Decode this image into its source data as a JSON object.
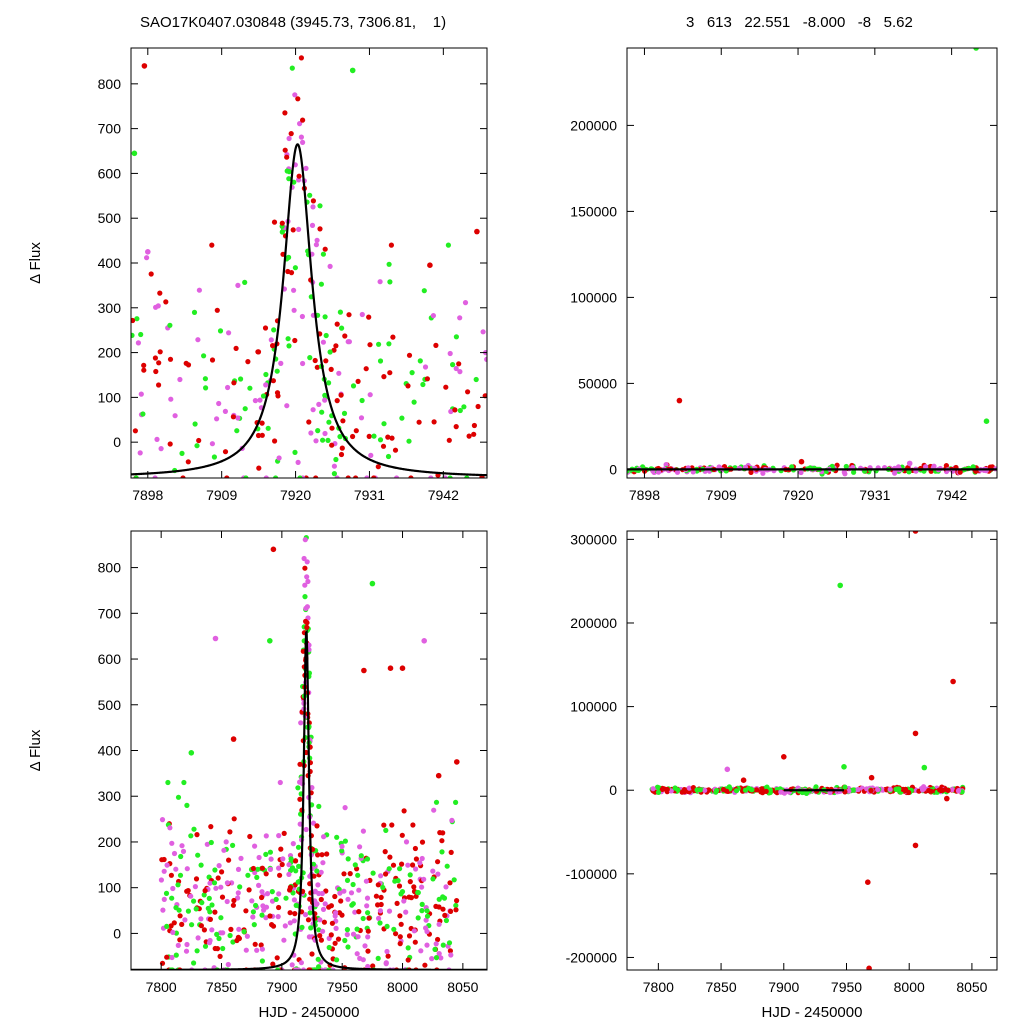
{
  "header": {
    "left": "SAO17K0407.030848 (3945.73, 7306.81,    1)",
    "right": "3   613   22.551   -8.000   -8   5.62"
  },
  "colors": {
    "red": "#dd0000",
    "green": "#22ee22",
    "magenta": "#e060e0",
    "fit": "#000000"
  },
  "chart_data": [
    {
      "id": "top-left",
      "type": "scatter",
      "xlim": [
        7895.5,
        7948.5
      ],
      "ylim": [
        -80,
        880
      ],
      "xticks": [
        7898,
        7909,
        7920,
        7931,
        7942
      ],
      "yticks": [
        0,
        100,
        200,
        300,
        400,
        500,
        600,
        700,
        800
      ],
      "xlabel": "",
      "ylabel": "Δ Flux",
      "fit": {
        "shape": "lorentzian",
        "center": 7920.3,
        "amplitude": 745,
        "hwhm": 2.6,
        "offset": -80
      },
      "cloud": [
        {
          "kind": "peak",
          "n": 130,
          "center": 7920.3,
          "width": 3.2,
          "amp": 745,
          "offset": -80,
          "scatter": 130,
          "xmin": 7895.5,
          "xmax": 7948.5,
          "ymin": -80,
          "ymax": 870
        },
        {
          "kind": "band",
          "n": 210,
          "xmin": 7895.5,
          "xmax": 7948.5,
          "mean": 110,
          "spread": 130,
          "ymin": -80,
          "ymax": 440
        }
      ],
      "points": [
        {
          "x": 7897.5,
          "y": 840,
          "c": "red"
        },
        {
          "x": 7896.0,
          "y": 645,
          "c": "green"
        },
        {
          "x": 7898.0,
          "y": 425,
          "c": "magenta"
        },
        {
          "x": 7928.5,
          "y": 830,
          "c": "green"
        },
        {
          "x": 7940.0,
          "y": 395,
          "c": "red"
        },
        {
          "x": 7947.0,
          "y": 470,
          "c": "red"
        }
      ]
    },
    {
      "id": "top-right",
      "type": "scatter",
      "xlim": [
        7895.5,
        7948.5
      ],
      "ylim": [
        -5000,
        245000
      ],
      "xticks": [
        7898,
        7909,
        7920,
        7931,
        7942
      ],
      "yticks": [
        0,
        50000,
        100000,
        150000,
        200000
      ],
      "xlabel": "",
      "ylabel": "",
      "fit": {
        "shape": "flat",
        "xmin": 7895.5,
        "xmax": 7948.5,
        "y": 0
      },
      "cloud": [
        {
          "kind": "band",
          "n": 260,
          "xmin": 7895.5,
          "xmax": 7948.5,
          "mean": 0,
          "spread": 900,
          "ymin": -4500,
          "ymax": 5000
        }
      ],
      "points": [
        {
          "x": 7903.0,
          "y": 40000,
          "c": "red"
        },
        {
          "x": 7945.5,
          "y": 245000,
          "c": "green"
        },
        {
          "x": 7947.0,
          "y": 28000,
          "c": "green"
        },
        {
          "x": 7920.5,
          "y": 4500,
          "c": "red"
        },
        {
          "x": 7936.0,
          "y": 3500,
          "c": "magenta"
        }
      ]
    },
    {
      "id": "bottom-left",
      "type": "scatter",
      "xlim": [
        7775,
        8070
      ],
      "ylim": [
        -80,
        880
      ],
      "xticks": [
        7800,
        7850,
        7900,
        7950,
        8000,
        8050
      ],
      "yticks": [
        0,
        100,
        200,
        300,
        400,
        500,
        600,
        700,
        800
      ],
      "xlabel": "HJD - 2450000",
      "ylabel": "Δ Flux",
      "fit": {
        "shape": "lorentzian",
        "center": 7920.3,
        "amplitude": 745,
        "hwhm": 2.6,
        "offset": -80
      },
      "cloud": [
        {
          "kind": "peak",
          "n": 170,
          "center": 7920.3,
          "width": 3.6,
          "amp": 745,
          "offset": -80,
          "scatter": 150,
          "xmin": 7790,
          "xmax": 8050,
          "ymin": -80,
          "ymax": 870
        },
        {
          "kind": "band",
          "n": 560,
          "xmin": 7800,
          "xmax": 8045,
          "mean": 60,
          "spread": 95,
          "ymin": -80,
          "ymax": 330
        }
      ],
      "points": [
        {
          "x": 7845.0,
          "y": 645,
          "c": "magenta"
        },
        {
          "x": 7893.0,
          "y": 840,
          "c": "red"
        },
        {
          "x": 7890.0,
          "y": 640,
          "c": "green"
        },
        {
          "x": 7975.0,
          "y": 765,
          "c": "green"
        },
        {
          "x": 7968.0,
          "y": 575,
          "c": "red"
        },
        {
          "x": 7990.0,
          "y": 580,
          "c": "red"
        },
        {
          "x": 8000.0,
          "y": 580,
          "c": "red"
        },
        {
          "x": 8018.0,
          "y": 640,
          "c": "magenta"
        },
        {
          "x": 7860.0,
          "y": 425,
          "c": "red"
        },
        {
          "x": 7825.0,
          "y": 395,
          "c": "green"
        },
        {
          "x": 8045.0,
          "y": 375,
          "c": "red"
        },
        {
          "x": 8030.0,
          "y": 345,
          "c": "red"
        }
      ]
    },
    {
      "id": "bottom-right",
      "type": "scatter",
      "xlim": [
        7775,
        8070
      ],
      "ylim": [
        -215000,
        310000
      ],
      "xticks": [
        7800,
        7850,
        7900,
        7950,
        8000,
        8050
      ],
      "yticks": [
        -200000,
        -100000,
        0,
        100000,
        200000,
        300000
      ],
      "xlabel": "HJD - 2450000",
      "ylabel": "",
      "fit": {
        "shape": "flat",
        "xmin": 7900,
        "xmax": 7948,
        "y": 0
      },
      "cloud": [
        {
          "kind": "band",
          "n": 420,
          "xmin": 7795,
          "xmax": 8045,
          "mean": 0,
          "spread": 1500,
          "ymin": -8000,
          "ymax": 8000
        }
      ],
      "points": [
        {
          "x": 8005.0,
          "y": 310000,
          "c": "red"
        },
        {
          "x": 7945.0,
          "y": 245000,
          "c": "green"
        },
        {
          "x": 8035.0,
          "y": 130000,
          "c": "red"
        },
        {
          "x": 8005.0,
          "y": 68000,
          "c": "red"
        },
        {
          "x": 7900.0,
          "y": 40000,
          "c": "red"
        },
        {
          "x": 7948.0,
          "y": 28000,
          "c": "green"
        },
        {
          "x": 8012.0,
          "y": 27000,
          "c": "green"
        },
        {
          "x": 7855.0,
          "y": 25000,
          "c": "magenta"
        },
        {
          "x": 7970.0,
          "y": 15000,
          "c": "red"
        },
        {
          "x": 8005.0,
          "y": -66000,
          "c": "red"
        },
        {
          "x": 7967.0,
          "y": -110000,
          "c": "red"
        },
        {
          "x": 7968.0,
          "y": -213000,
          "c": "red"
        },
        {
          "x": 7868.0,
          "y": 12000,
          "c": "red"
        },
        {
          "x": 8030.0,
          "y": -10000,
          "c": "red"
        }
      ]
    }
  ]
}
